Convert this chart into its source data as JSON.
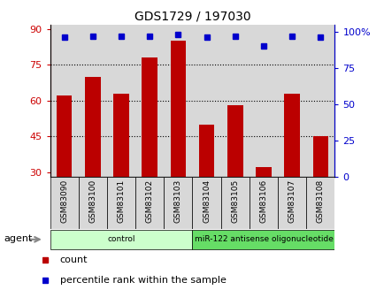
{
  "title": "GDS1729 / 197030",
  "samples": [
    "GSM83090",
    "GSM83100",
    "GSM83101",
    "GSM83102",
    "GSM83103",
    "GSM83104",
    "GSM83105",
    "GSM83106",
    "GSM83107",
    "GSM83108"
  ],
  "counts": [
    62,
    70,
    63,
    78,
    85,
    50,
    58,
    32,
    63,
    45
  ],
  "percentiles": [
    96,
    97,
    97,
    97,
    98,
    96,
    97,
    90,
    97,
    96
  ],
  "bar_color": "#bb0000",
  "dot_color": "#0000cc",
  "ylim_left": [
    28,
    92
  ],
  "yticks_left": [
    30,
    45,
    60,
    75,
    90
  ],
  "ylim_right": [
    0,
    105
  ],
  "yticks_right": [
    0,
    25,
    50,
    75,
    100
  ],
  "ytick_labels_right": [
    "0",
    "25",
    "50",
    "75",
    "100%"
  ],
  "grid_lines": [
    45,
    60,
    75
  ],
  "group_labels": [
    "control",
    "miR-122 antisense oligonucleotide"
  ],
  "group_ranges": [
    [
      0,
      4
    ],
    [
      5,
      9
    ]
  ],
  "group_color_light": "#ccffcc",
  "group_color_dark": "#66dd66",
  "agent_label": "agent",
  "legend_count_label": "count",
  "legend_percentile_label": "percentile rank within the sample",
  "bar_width": 0.55,
  "cell_bg_color": "#d8d8d8",
  "plot_bg_color": "#ffffff",
  "axis_label_color_left": "#cc0000",
  "axis_label_color_right": "#0000cc"
}
